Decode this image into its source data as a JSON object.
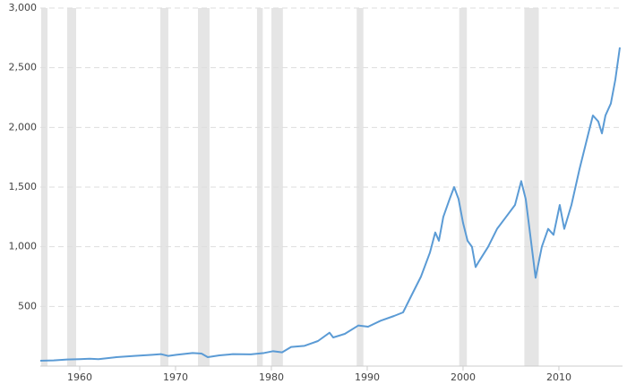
{
  "chart_data": {
    "type": "line",
    "x": [
      1955.89,
      1957.29,
      1958.69,
      1960,
      1961.03,
      1961.96,
      1963.83,
      1965.7,
      1967.57,
      1968.5,
      1969.25,
      1970.09,
      1971.78,
      1972.71,
      1973.36,
      1974.58,
      1975.98,
      1977.85,
      1979.25,
      1980.19,
      1981.12,
      1982.06,
      1983.46,
      1984.86,
      1986.07,
      1986.45,
      1987.66,
      1989.07,
      1990.09,
      1991.4,
      1992.8,
      1993.74,
      1994.67,
      1995.61,
      1996.54,
      1997.1,
      1997.48,
      1997.94,
      1998.6,
      1999.07,
      1999.53,
      2000,
      2000.47,
      2000.93,
      2001.31,
      2001.68,
      2002.62,
      2003.55,
      2004.49,
      2005.42,
      2006.07,
      2006.54,
      2007.01,
      2007.57,
      2008.22,
      2008.88,
      2009.44,
      2010.09,
      2010.56,
      2011.31,
      2012.15,
      2013.08,
      2013.55,
      2014.11,
      2014.49,
      2014.86,
      2015.42,
      2015.89,
      2016.36
    ],
    "series": [
      {
        "color": "#5b9bd5",
        "values": [
          45,
          48,
          55,
          58,
          62,
          58,
          75,
          85,
          95,
          100,
          85,
          95,
          110,
          105,
          75,
          90,
          100,
          98,
          110,
          125,
          115,
          160,
          170,
          210,
          280,
          240,
          270,
          340,
          330,
          380,
          420,
          450,
          600,
          750,
          950,
          1120,
          1050,
          1250,
          1400,
          1500,
          1400,
          1200,
          1050,
          1000,
          830,
          880,
          1000,
          1150,
          1250,
          1350,
          1550,
          1400,
          1100,
          740,
          1000,
          1150,
          1100,
          1350,
          1150,
          1350,
          1650,
          1950,
          2100,
          2050,
          1950,
          2100,
          2200,
          2400,
          2670
        ]
      }
    ],
    "recessions": [
      [
        1955.98,
        1956.64
      ],
      [
        1958.69,
        1959.63
      ],
      [
        1968.41,
        1969.25
      ],
      [
        1972.34,
        1973.55
      ],
      [
        1978.5,
        1979.1
      ],
      [
        1980.0,
        1981.2
      ],
      [
        1988.9,
        1989.6
      ],
      [
        1999.6,
        2000.4
      ],
      [
        2006.4,
        2007.9
      ]
    ],
    "recession_color": "#e5e5e5",
    "xlim": [
      1955.89,
      2016.64
    ],
    "xticks": [
      1960,
      1970,
      1980,
      1990,
      2000,
      2010
    ],
    "ylim": [
      0,
      3000
    ],
    "yticks": [
      500,
      {
        "value": 1000,
        "label": "1,000"
      },
      {
        "value": 1500,
        "label": "1,500"
      },
      {
        "value": 2000,
        "label": "2,000"
      },
      {
        "value": 2500,
        "label": "2,500"
      },
      {
        "value": 3000,
        "label": "3,000"
      }
    ],
    "grid": true
  }
}
